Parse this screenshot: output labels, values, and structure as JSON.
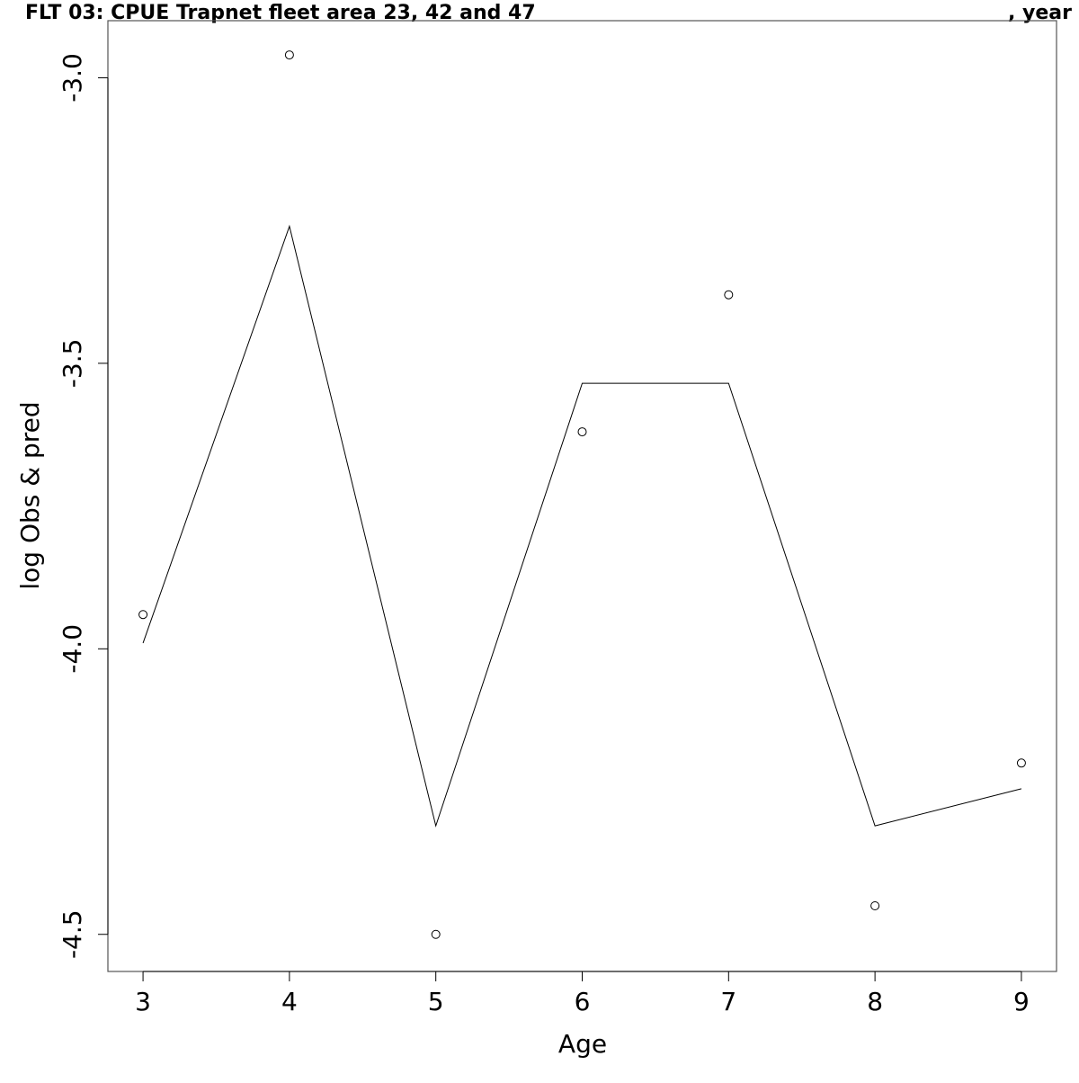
{
  "chart_data": {
    "type": "line",
    "title": "FLT 03: CPUE Trapnet fleet area 23, 42 and 47",
    "title_right": ", year",
    "xlabel": "Age",
    "ylabel": "log Obs & pred",
    "xlim": [
      2.76,
      9.24
    ],
    "ylim": [
      -4.565,
      -2.9
    ],
    "x_ticks": [
      3,
      4,
      5,
      6,
      7,
      8,
      9
    ],
    "x_tick_labels": [
      "3",
      "4",
      "5",
      "6",
      "7",
      "8",
      "9"
    ],
    "y_ticks": [
      -3.0,
      -3.5,
      -4.0,
      -4.5
    ],
    "y_tick_labels": [
      "-3.0",
      "-3.5",
      "-4.0",
      "-4.5"
    ],
    "grid": false,
    "series": [
      {
        "kind": "points",
        "x": [
          3,
          4,
          5,
          6,
          7,
          8,
          9
        ],
        "y": [
          -3.94,
          -2.96,
          -4.5,
          -3.62,
          -3.38,
          -4.45,
          -4.2
        ]
      },
      {
        "kind": "line",
        "x": [
          3,
          4,
          5,
          6,
          7,
          8,
          9
        ],
        "y": [
          -3.99,
          -3.26,
          -4.31,
          -3.535,
          -3.535,
          -4.31,
          -4.245
        ]
      }
    ]
  }
}
